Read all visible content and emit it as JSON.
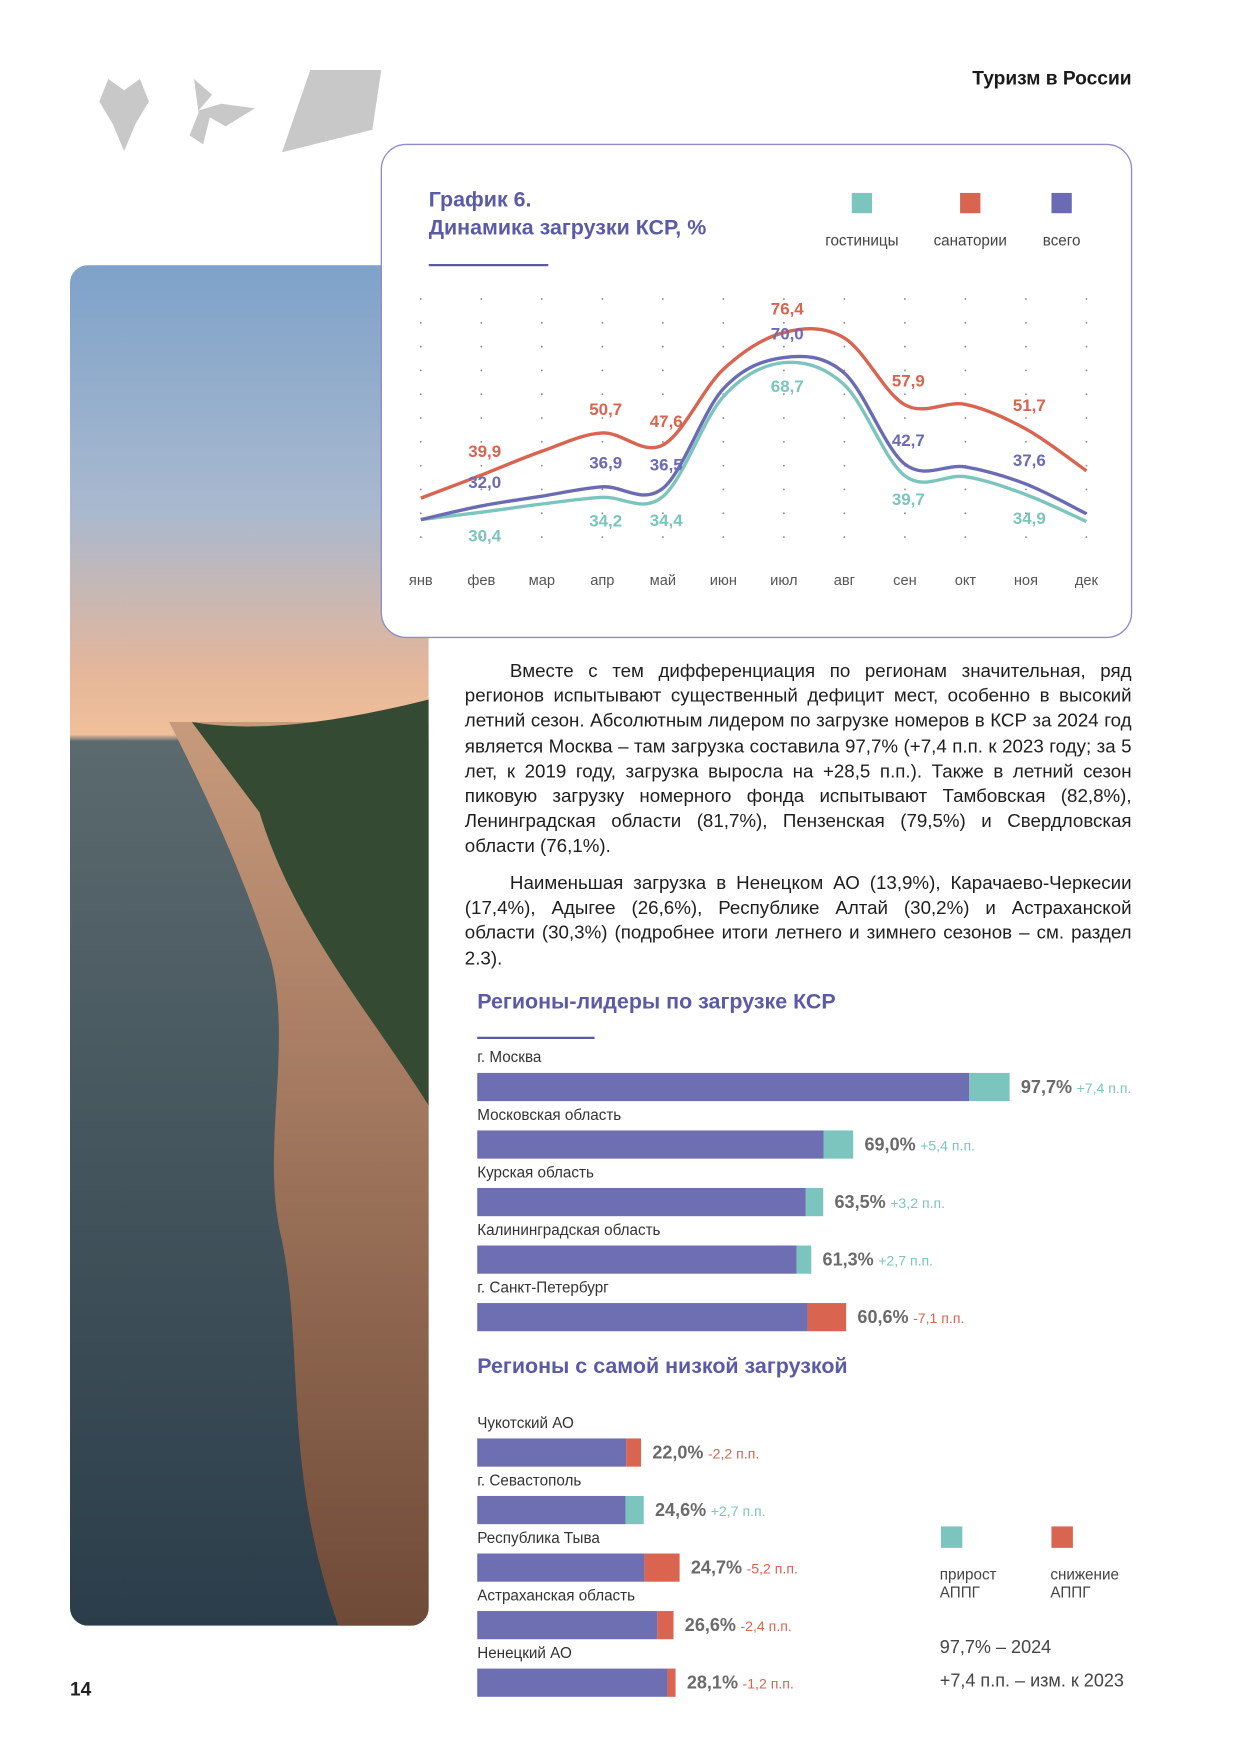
{
  "header": {
    "title": "Туризм в России"
  },
  "page_number": "14",
  "chart_data": {
    "type": "line",
    "title": "График 6.",
    "subtitle": "Динамика загрузки КСР, %",
    "categories": [
      "янв",
      "фев",
      "мар",
      "апр",
      "май",
      "июн",
      "июл",
      "авг",
      "сен",
      "окт",
      "ноя",
      "дек"
    ],
    "series": [
      {
        "name": "гостиницы",
        "color": "#7cc5be",
        "values": [
          28.5,
          30.4,
          32.5,
          34.2,
          34.4,
          60,
          68.7,
          63,
          39.7,
          39.5,
          34.9,
          28
        ],
        "value_labels": [
          null,
          "30,4",
          null,
          "34,2",
          "34,4",
          null,
          "68,7",
          null,
          "39,7",
          null,
          "34,9",
          null
        ]
      },
      {
        "name": "санатории",
        "color": "#d9644f",
        "values": [
          34,
          39.9,
          46,
          50.7,
          47.6,
          67,
          76.4,
          75,
          57.9,
          58,
          51.7,
          41
        ],
        "value_labels": [
          null,
          "39,9",
          null,
          "50,7",
          "47,6",
          null,
          "76,4",
          null,
          "57,9",
          null,
          "51,7",
          null
        ]
      },
      {
        "name": "всего",
        "color": "#6b6bb3",
        "values": [
          28.5,
          32.0,
          34.5,
          36.9,
          36.5,
          62,
          70.0,
          66,
          42.7,
          42,
          37.6,
          30
        ],
        "value_labels": [
          null,
          "32,0",
          null,
          "36,9",
          "36,5",
          null,
          "70,0",
          null,
          "42,7",
          null,
          "37,6",
          null
        ]
      }
    ],
    "ylim": [
      20,
      85
    ],
    "grid": true
  },
  "paragraphs": [
    "Вместе с тем дифференциация по регионам значительная, ряд регионов испытывают существенный дефицит мест, особенно в высокий летний сезон. Абсолютным лидером по загрузке номеров в КСР за 2024 год является Москва – там загрузка составила 97,7% (+7,4 п.п. к 2023 году; за 5 лет, к 2019 году, загрузка выросла на +28,5 п.п.).  Также в летний сезон пиковую загрузку номерного фонда испытывают Тамбовская (82,8%), Ленинградская области (81,7%), Пензенская (79,5%) и Свердловская области (76,1%).",
    "Наименьшая загрузка в Ненецком АО (13,9%), Карачаево-Черкесии (17,4%), Адыгее (26,6%), Республике Алтай (30,2%) и Астраханской области (30,3%) (подробнее итоги летнего и зимнего сезонов – см. раздел 2.3)."
  ],
  "leaders": {
    "type": "bar",
    "title": "Регионы-лидеры по загрузке КСР",
    "categories": [
      "г. Москва",
      "Московская область",
      "Курская область",
      "Калининградская область",
      "г. Санкт-Петербург"
    ],
    "values": [
      97.7,
      69.0,
      63.5,
      61.3,
      60.6
    ],
    "value_labels": [
      "97,7%",
      "69,0%",
      "63,5%",
      "61,3%",
      "60,6%"
    ],
    "changes": [
      7.4,
      5.4,
      3.2,
      2.7,
      -7.1
    ],
    "change_labels": [
      "+7,4 п.п.",
      "+5,4 п.п.",
      "+3,2 п.п.",
      "+2,7 п.п.",
      "-7,1 п.п."
    ],
    "xlim": [
      0,
      100
    ],
    "color": "#6e6fb3"
  },
  "lowest": {
    "type": "bar",
    "title": "Регионы с самой низкой загрузкой",
    "categories": [
      "Чукотский АО",
      "г. Севастополь",
      "Республика Тыва",
      "Астраханская область",
      "Ненецкий АО"
    ],
    "values": [
      22.0,
      24.6,
      24.7,
      26.6,
      28.1
    ],
    "value_labels": [
      "22,0%",
      "24,6%",
      "24,7%",
      "26,6%",
      "28,1%"
    ],
    "changes": [
      -2.2,
      2.7,
      -5.2,
      -2.4,
      -1.2
    ],
    "change_labels": [
      "-2,2 п.п.",
      "+2,7 п.п.",
      "-5,2 п.п.",
      "-2,4 п.п.",
      "-1,2 п.п."
    ],
    "xlim": [
      0,
      40
    ],
    "color": "#6e6fb3"
  },
  "legend": {
    "items": [
      {
        "name": "прирост АППГ",
        "color": "#7cc5be"
      },
      {
        "name": "снижение АППГ",
        "color": "#d9644f"
      }
    ],
    "value_note": "97,7% – 2024",
    "change_note": "+7,4 п.п. – изм. к 2023"
  }
}
